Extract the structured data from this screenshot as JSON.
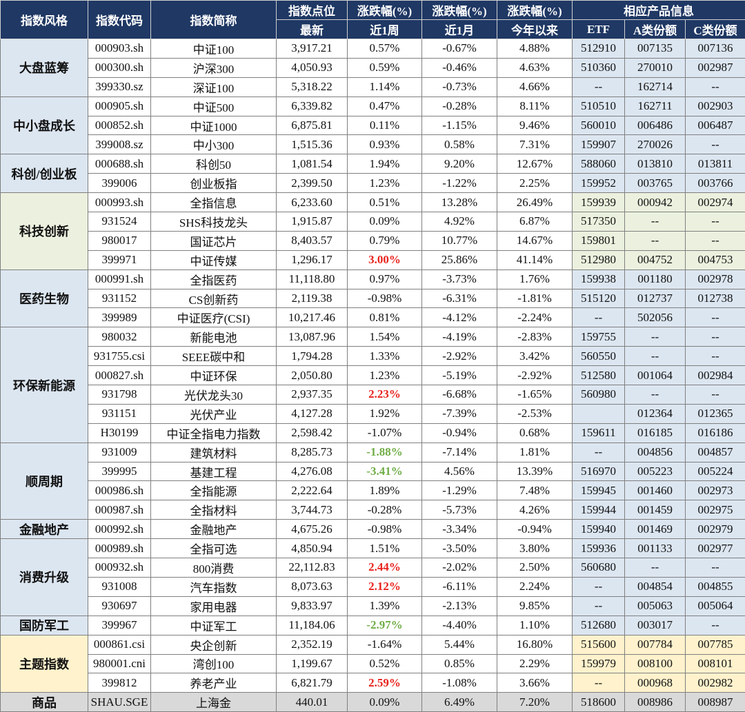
{
  "header": {
    "row1": [
      "指数风格",
      "指数代码",
      "指数简称",
      "指数点位",
      "涨跌幅(%)",
      "涨跌幅(%)",
      "涨跌幅(%)",
      "相应产品信息"
    ],
    "row2": [
      "最新",
      "近1周",
      "近1月",
      "今年以来",
      "ETF",
      "A类份额",
      "C类份额"
    ]
  },
  "groups": [
    {
      "name": "大盘蓝筹",
      "color": "#dce6f1",
      "rows": [
        {
          "cells": [
            "000903.sh",
            "中证100",
            "3,917.21",
            "0.57%",
            "-0.67%",
            "4.88%",
            "512910",
            "007135",
            "007136"
          ]
        },
        {
          "cells": [
            "000300.sh",
            "沪深300",
            "4,050.93",
            "0.59%",
            "-0.46%",
            "4.63%",
            "510360",
            "270010",
            "002987"
          ]
        },
        {
          "cells": [
            "399330.sz",
            "深证100",
            "5,318.22",
            "1.14%",
            "-0.73%",
            "4.66%",
            "--",
            "162714",
            "--"
          ]
        }
      ]
    },
    {
      "name": "中小盘成长",
      "color": "#dce6f1",
      "rows": [
        {
          "cells": [
            "000905.sh",
            "中证500",
            "6,339.82",
            "0.47%",
            "-0.28%",
            "8.11%",
            "510510",
            "162711",
            "002903"
          ]
        },
        {
          "cells": [
            "000852.sh",
            "中证1000",
            "6,875.81",
            "0.11%",
            "-1.15%",
            "9.46%",
            "560010",
            "006486",
            "006487"
          ]
        },
        {
          "cells": [
            "399008.sz",
            "中小300",
            "1,515.36",
            "0.93%",
            "0.58%",
            "7.31%",
            "159907",
            "270026",
            "--"
          ]
        }
      ]
    },
    {
      "name": "科创/创业板",
      "color": "#dce6f1",
      "rows": [
        {
          "cells": [
            "000688.sh",
            "科创50",
            "1,081.54",
            "1.94%",
            "9.20%",
            "12.67%",
            "588060",
            "013810",
            "013811"
          ]
        },
        {
          "cells": [
            "399006",
            "创业板指",
            "2,399.50",
            "1.23%",
            "-1.22%",
            "2.25%",
            "159952",
            "003765",
            "003766"
          ]
        }
      ]
    },
    {
      "name": "科技创新",
      "color": "#ebf1de",
      "rows": [
        {
          "cells": [
            "000993.sh",
            "全指信息",
            "6,233.60",
            "0.51%",
            "13.28%",
            "26.49%",
            "159939",
            "000942",
            "002974"
          ]
        },
        {
          "cells": [
            "931524",
            "SHS科技龙头",
            "1,915.87",
            "0.09%",
            "4.92%",
            "6.87%",
            "517350",
            "--",
            "--"
          ]
        },
        {
          "cells": [
            "980017",
            "国证芯片",
            "8,403.57",
            "0.79%",
            "10.77%",
            "14.67%",
            "159801",
            "--",
            "--"
          ]
        },
        {
          "cells": [
            "399971",
            "中证传媒",
            "1,296.17",
            "3.00%",
            "25.86%",
            "41.14%",
            "512980",
            "004752",
            "004753"
          ],
          "week_color": "#e8231d"
        }
      ]
    },
    {
      "name": "医药生物",
      "color": "#dce6f1",
      "rows": [
        {
          "cells": [
            "000991.sh",
            "全指医药",
            "11,118.80",
            "0.97%",
            "-3.73%",
            "1.76%",
            "159938",
            "001180",
            "002978"
          ]
        },
        {
          "cells": [
            "931152",
            "CS创新药",
            "2,119.38",
            "-0.98%",
            "-6.31%",
            "-1.81%",
            "515120",
            "012737",
            "012738"
          ]
        },
        {
          "cells": [
            "399989",
            "中证医疗(CSI)",
            "10,217.46",
            "0.81%",
            "-4.12%",
            "-2.24%",
            "--",
            "502056",
            "--"
          ]
        }
      ]
    },
    {
      "name": "环保新能源",
      "color": "#dce6f1",
      "rows": [
        {
          "cells": [
            "980032",
            "新能电池",
            "13,087.96",
            "1.54%",
            "-4.19%",
            "-2.83%",
            "159755",
            "--",
            "--"
          ]
        },
        {
          "cells": [
            "931755.csi",
            "SEEE碳中和",
            "1,794.28",
            "1.33%",
            "-2.92%",
            "3.42%",
            "560550",
            "--",
            "--"
          ]
        },
        {
          "cells": [
            "000827.sh",
            "中证环保",
            "2,050.80",
            "1.23%",
            "-5.19%",
            "-2.92%",
            "512580",
            "001064",
            "002984"
          ]
        },
        {
          "cells": [
            "931798",
            "光伏龙头30",
            "2,937.35",
            "2.23%",
            "-6.68%",
            "-1.65%",
            "560980",
            "--",
            "--"
          ],
          "week_color": "#e8231d"
        },
        {
          "cells": [
            "931151",
            "光伏产业",
            "4,127.28",
            "1.92%",
            "-7.39%",
            "-2.53%",
            null,
            "012364",
            "012365"
          ]
        },
        {
          "cells": [
            "H30199",
            "中证全指电力指数",
            "2,598.42",
            "-1.07%",
            "-0.94%",
            "0.68%",
            "159611",
            "016185",
            "016186"
          ]
        }
      ]
    },
    {
      "name": "顺周期",
      "color": "#dce6f1",
      "rows": [
        {
          "cells": [
            "931009",
            "建筑材料",
            "8,285.73",
            "-1.88%",
            "-7.14%",
            "1.81%",
            "--",
            "004856",
            "004857"
          ],
          "week_color": "#70ad47"
        },
        {
          "cells": [
            "399995",
            "基建工程",
            "4,276.08",
            "-3.41%",
            "4.56%",
            "13.39%",
            "516970",
            "005223",
            "005224"
          ],
          "week_color": "#70ad47"
        },
        {
          "cells": [
            "000986.sh",
            "全指能源",
            "2,222.64",
            "1.89%",
            "-1.29%",
            "7.48%",
            "159945",
            "001460",
            "002973"
          ]
        },
        {
          "cells": [
            "000987.sh",
            "全指材料",
            "3,744.73",
            "-0.28%",
            "-5.73%",
            "4.26%",
            "159944",
            "001459",
            "002975"
          ]
        }
      ]
    },
    {
      "name": "金融地产",
      "color": "#dce6f1",
      "rows": [
        {
          "cells": [
            "000992.sh",
            "金融地产",
            "4,675.26",
            "-0.98%",
            "-3.34%",
            "-0.94%",
            "159940",
            "001469",
            "002979"
          ]
        }
      ]
    },
    {
      "name": "消费升级",
      "color": "#dce6f1",
      "rows": [
        {
          "cells": [
            "000989.sh",
            "全指可选",
            "4,850.94",
            "1.51%",
            "-3.50%",
            "3.80%",
            "159936",
            "001133",
            "002977"
          ]
        },
        {
          "cells": [
            "000932.sh",
            "800消费",
            "22,112.83",
            "2.44%",
            "-2.02%",
            "2.50%",
            "560680",
            "--",
            "--"
          ],
          "week_color": "#e8231d"
        },
        {
          "cells": [
            "931008",
            "汽车指数",
            "8,073.63",
            "2.12%",
            "-6.11%",
            "2.24%",
            "--",
            "004854",
            "004855"
          ],
          "week_color": "#e8231d"
        },
        {
          "cells": [
            "930697",
            "家用电器",
            "9,833.97",
            "1.39%",
            "-2.13%",
            "9.85%",
            "--",
            "005063",
            "005064"
          ]
        }
      ]
    },
    {
      "name": "国防军工",
      "color": "#dce6f1",
      "rows": [
        {
          "cells": [
            "399967",
            "中证军工",
            "11,184.06",
            "-2.97%",
            "-4.40%",
            "1.10%",
            "512680",
            "003017",
            "--"
          ],
          "week_color": "#70ad47"
        }
      ]
    },
    {
      "name": "主题指数",
      "color": "#fff2cc",
      "rows": [
        {
          "cells": [
            "000861.csi",
            "央企创新",
            "2,352.19",
            "-1.64%",
            "5.44%",
            "16.80%",
            "515600",
            "007784",
            "007785"
          ]
        },
        {
          "cells": [
            "980001.cni",
            "湾创100",
            "1,199.67",
            "0.52%",
            "0.85%",
            "2.29%",
            "159979",
            "008100",
            "008101"
          ]
        },
        {
          "cells": [
            "399812",
            "养老产业",
            "6,821.79",
            "2.59%",
            "-1.08%",
            "3.66%",
            "--",
            "000968",
            "002982"
          ],
          "week_color": "#e8231d"
        }
      ]
    },
    {
      "name": "商品",
      "color": "#d9d9d9",
      "rows": [
        {
          "cells": [
            "SHAU.SGE",
            "上海金",
            "440.01",
            "0.09%",
            "6.49%",
            "7.20%",
            "518600",
            "008986",
            "008987"
          ]
        }
      ]
    }
  ]
}
